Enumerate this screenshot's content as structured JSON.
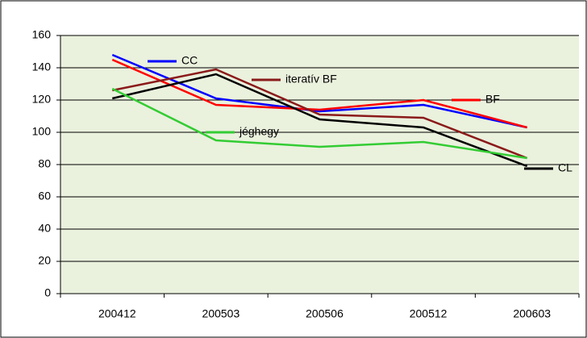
{
  "chart_data": {
    "type": "line",
    "categories": [
      "200412",
      "200503",
      "200506",
      "200512",
      "200603"
    ],
    "series": [
      {
        "name": "CC",
        "color": "#0000ff",
        "values": [
          148,
          121,
          113,
          117,
          103
        ]
      },
      {
        "name": "BF",
        "color": "#ff0000",
        "values": [
          145,
          117,
          114,
          120,
          103
        ]
      },
      {
        "name": "iteratív BF",
        "color": "#8b1a1a",
        "values": [
          126,
          139,
          111,
          109,
          84
        ]
      },
      {
        "name": "CL",
        "color": "#000000",
        "values": [
          121,
          136,
          108,
          103,
          79
        ]
      },
      {
        "name": "jéghegy",
        "color": "#33cc33",
        "values": [
          127,
          95,
          91,
          94,
          84
        ]
      }
    ],
    "ylim": [
      0,
      160
    ],
    "yticks": [
      0,
      20,
      40,
      60,
      80,
      100,
      120,
      140,
      160
    ],
    "grid": true
  }
}
